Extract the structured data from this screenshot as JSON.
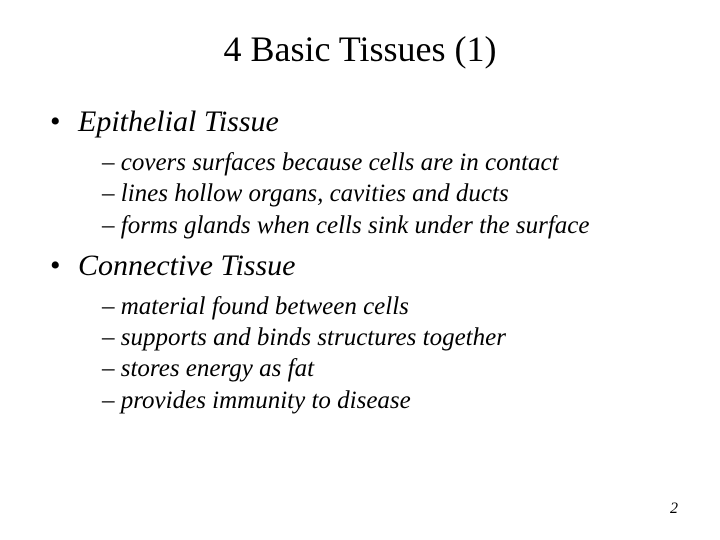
{
  "slide": {
    "title": "4 Basic Tissues (1)",
    "sections": [
      {
        "heading": "Epithelial Tissue",
        "items": [
          "covers surfaces because cells are in contact",
          "lines hollow organs, cavities and ducts",
          "forms glands when cells sink under the surface"
        ]
      },
      {
        "heading": "Connective Tissue",
        "items": [
          "material found between cells",
          "supports and binds structures together",
          " stores energy as fat",
          "provides immunity to disease"
        ]
      }
    ],
    "pageNumber": "2"
  },
  "style": {
    "background_color": "#ffffff",
    "text_color": "#000000",
    "title_fontsize": 36,
    "level1_fontsize": 30,
    "level2_fontsize": 25,
    "font_family": "Times New Roman",
    "bullet_level1": "•",
    "bullet_level2": "–"
  }
}
